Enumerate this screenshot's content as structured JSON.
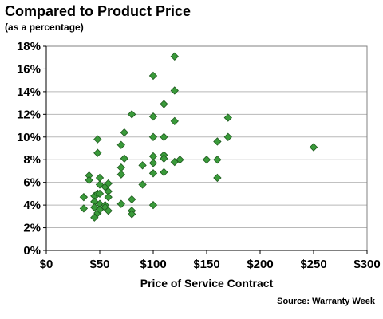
{
  "chart_data": {
    "type": "scatter",
    "title": "Compared to Product Price",
    "subtitle": "(as a percentage)",
    "xlabel": "Price of Service Contract",
    "ylabel": "",
    "source": "Source: Warranty Week",
    "xlim": [
      0,
      300
    ],
    "ylim": [
      0,
      18
    ],
    "x_ticks": [
      0,
      50,
      100,
      150,
      200,
      250,
      300
    ],
    "x_tick_labels": [
      "$0",
      "$50",
      "$100",
      "$150",
      "$200",
      "$250",
      "$300"
    ],
    "y_ticks": [
      0,
      2,
      4,
      6,
      8,
      10,
      12,
      14,
      16,
      18
    ],
    "y_tick_labels": [
      "0%",
      "2%",
      "4%",
      "6%",
      "8%",
      "10%",
      "12%",
      "14%",
      "16%",
      "18%"
    ],
    "grid": true,
    "marker_color": "#3a9a3a",
    "marker_edge": "#1e5a1e",
    "points": [
      {
        "x": 35,
        "y": 4.7
      },
      {
        "x": 35,
        "y": 3.7
      },
      {
        "x": 40,
        "y": 6.6
      },
      {
        "x": 40,
        "y": 6.2
      },
      {
        "x": 45,
        "y": 4.8
      },
      {
        "x": 45,
        "y": 4.3
      },
      {
        "x": 45,
        "y": 3.8
      },
      {
        "x": 45,
        "y": 2.9
      },
      {
        "x": 48,
        "y": 9.8
      },
      {
        "x": 48,
        "y": 8.6
      },
      {
        "x": 48,
        "y": 5.0
      },
      {
        "x": 48,
        "y": 3.3
      },
      {
        "x": 50,
        "y": 6.4
      },
      {
        "x": 50,
        "y": 5.8
      },
      {
        "x": 50,
        "y": 5.0
      },
      {
        "x": 50,
        "y": 4.1
      },
      {
        "x": 50,
        "y": 3.6
      },
      {
        "x": 55,
        "y": 5.6
      },
      {
        "x": 55,
        "y": 4.0
      },
      {
        "x": 55,
        "y": 3.8
      },
      {
        "x": 58,
        "y": 5.9
      },
      {
        "x": 58,
        "y": 5.2
      },
      {
        "x": 58,
        "y": 4.7
      },
      {
        "x": 58,
        "y": 3.5
      },
      {
        "x": 70,
        "y": 9.3
      },
      {
        "x": 70,
        "y": 7.3
      },
      {
        "x": 70,
        "y": 6.7
      },
      {
        "x": 70,
        "y": 4.1
      },
      {
        "x": 73,
        "y": 10.4
      },
      {
        "x": 73,
        "y": 8.1
      },
      {
        "x": 80,
        "y": 12.0
      },
      {
        "x": 80,
        "y": 4.5
      },
      {
        "x": 80,
        "y": 3.5
      },
      {
        "x": 80,
        "y": 3.2
      },
      {
        "x": 90,
        "y": 7.5
      },
      {
        "x": 90,
        "y": 5.8
      },
      {
        "x": 100,
        "y": 15.4
      },
      {
        "x": 100,
        "y": 11.8
      },
      {
        "x": 100,
        "y": 10.0
      },
      {
        "x": 100,
        "y": 8.3
      },
      {
        "x": 100,
        "y": 7.7
      },
      {
        "x": 100,
        "y": 6.8
      },
      {
        "x": 100,
        "y": 4.0
      },
      {
        "x": 110,
        "y": 12.9
      },
      {
        "x": 110,
        "y": 10.0
      },
      {
        "x": 110,
        "y": 8.4
      },
      {
        "x": 110,
        "y": 8.1
      },
      {
        "x": 110,
        "y": 6.9
      },
      {
        "x": 120,
        "y": 17.1
      },
      {
        "x": 120,
        "y": 14.1
      },
      {
        "x": 120,
        "y": 11.4
      },
      {
        "x": 120,
        "y": 7.8
      },
      {
        "x": 125,
        "y": 8.0
      },
      {
        "x": 150,
        "y": 8.0
      },
      {
        "x": 160,
        "y": 9.6
      },
      {
        "x": 160,
        "y": 8.0
      },
      {
        "x": 160,
        "y": 6.4
      },
      {
        "x": 170,
        "y": 11.7
      },
      {
        "x": 170,
        "y": 10.0
      },
      {
        "x": 250,
        "y": 9.1
      }
    ]
  }
}
